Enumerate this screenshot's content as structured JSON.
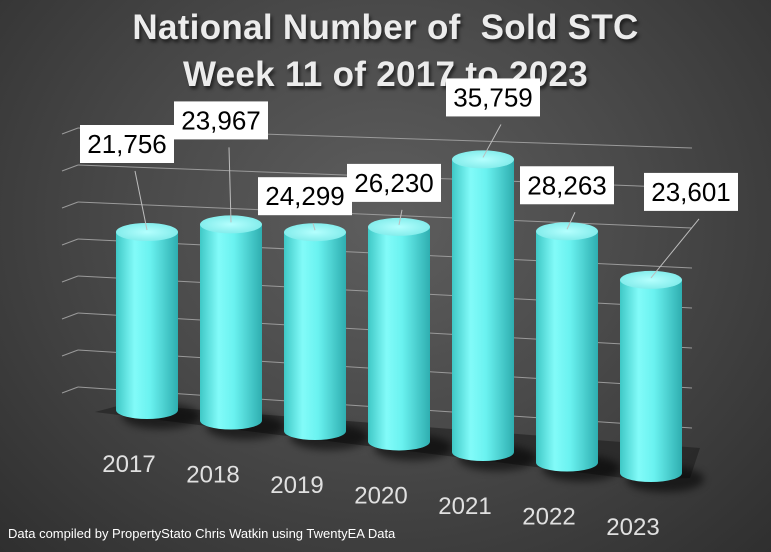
{
  "chart_data": {
    "type": "bar",
    "title_lines": [
      "National Number of  Sold STC",
      "Week 11 of 2017 to 2023"
    ],
    "categories": [
      "2017",
      "2018",
      "2019",
      "2020",
      "2021",
      "2022",
      "2023"
    ],
    "values": [
      21756,
      23967,
      24299,
      26230,
      35759,
      28263,
      23601
    ],
    "value_labels": [
      "21,756",
      "23,967",
      "24,299",
      "26,230",
      "35,759",
      "28,263",
      "23,601"
    ],
    "style": "3d-cylinder",
    "bar_color": "#66f0ee",
    "grid": true,
    "legend": "none"
  },
  "footnote": "Data compiled by PropertyStato Chris Watkin using TwentyEA Data"
}
